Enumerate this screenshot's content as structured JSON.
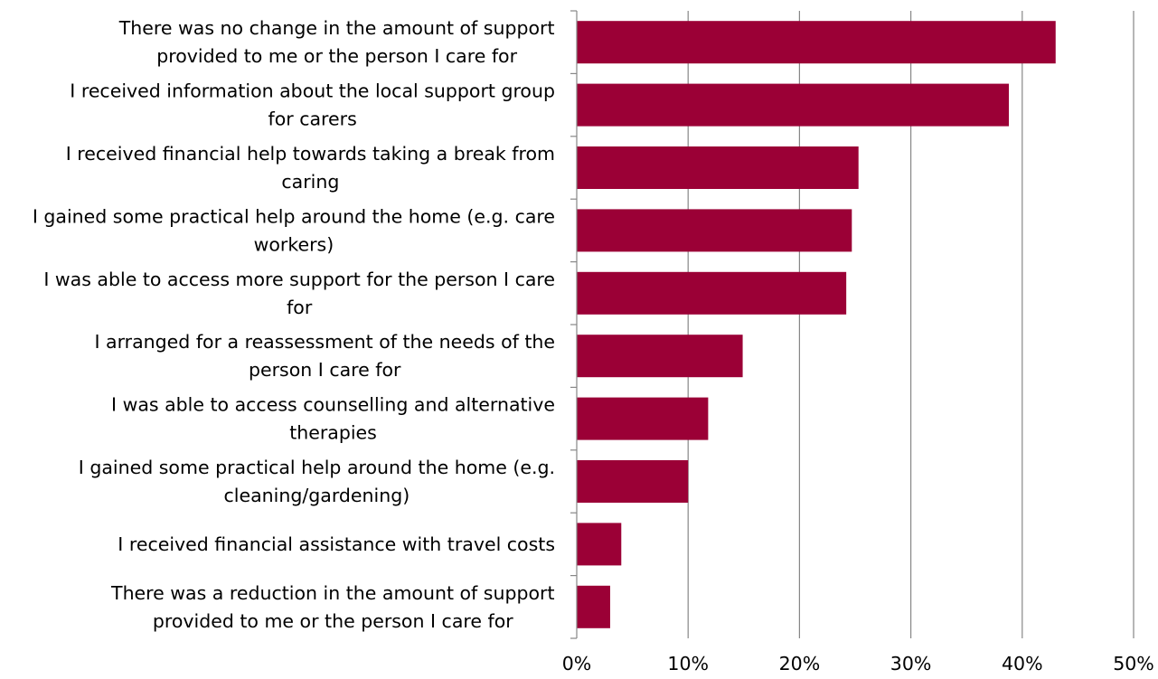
{
  "chart_data": {
    "type": "bar",
    "orientation": "horizontal",
    "title": "",
    "xlabel": "",
    "ylabel": "",
    "categories": [
      [
        "There was no change in the amount of support",
        "provided to me or the person I care for"
      ],
      [
        "I received information about the local support group",
        "for carers"
      ],
      [
        "I received financial help towards taking a break from",
        "caring"
      ],
      [
        "I gained some practical help around the home (e.g. care",
        "workers)"
      ],
      [
        "I was able to access more support for the person I care",
        "for"
      ],
      [
        "I arranged for a reassessment of the needs of the",
        "person I care for"
      ],
      [
        "I was able to access counselling and alternative",
        "therapies"
      ],
      [
        "I gained some practical help around the home (e.g.",
        "cleaning/gardening)"
      ],
      [
        "I received financial assistance with travel costs"
      ],
      [
        "There was a reduction in the amount of support",
        "provided to me or the person I care for"
      ]
    ],
    "values": [
      43,
      38.8,
      25.3,
      24.7,
      24.2,
      14.9,
      11.8,
      10,
      4,
      3
    ],
    "xlim": [
      0,
      50
    ],
    "ticks": [
      0,
      10,
      20,
      30,
      40,
      50
    ],
    "tick_labels": [
      "0%",
      "10%",
      "20%",
      "30%",
      "40%",
      "50%"
    ],
    "grid": true,
    "legend": "none",
    "bar_color": "#9b0036"
  }
}
